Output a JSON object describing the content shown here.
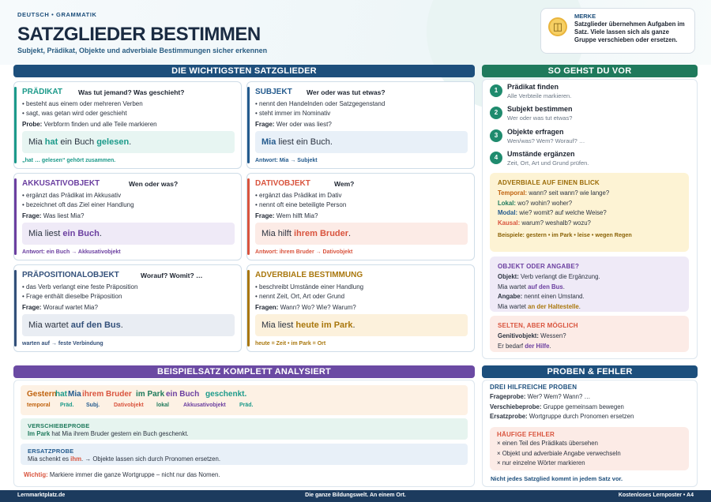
{
  "header": {
    "eyebrow": "DEUTSCH • GRAMMATIK",
    "title": "SATZGLIEDER BESTIMMEN",
    "subtitle": "Subjekt, Prädikat, Objekte und adverbiale Bestimmungen sicher erkennen"
  },
  "merke": {
    "title": "MERKE",
    "text": "Satzglieder übernehmen Aufgaben im Satz. Viele lassen sich als ganze Gruppe verschieben oder ersetzen."
  },
  "main_bar": "DIE WICHTIGSTEN SATZGLIEDER",
  "cards": {
    "praedikat": {
      "title": "PRÄDIKAT",
      "question": "Was tut jemand? Was geschieht?",
      "b1": "• besteht aus einem oder mehreren Verben",
      "b2": "• sagt, was getan wird oder geschieht",
      "probe_label": "Probe:",
      "probe_text": "Verbform finden und alle Teile markieren",
      "ex_pre": "Mia ",
      "ex_a": "hat",
      "ex_mid": " ein Buch ",
      "ex_b": "gelesen",
      "ex_post": ".",
      "answer": "„hat … gelesen“ gehört zusammen."
    },
    "subjekt": {
      "title": "SUBJEKT",
      "question": "Wer oder was tut etwas?",
      "b1": "• nennt den Handelnden oder Satzgegenstand",
      "b2": "• steht immer im Nominativ",
      "probe_label": "Frage:",
      "probe_text": "Wer oder was liest?",
      "ex_hl": "Mia",
      "ex_post": " liest ein Buch.",
      "answer": "Antwort: Mia → Subjekt"
    },
    "akkusativ": {
      "title": "AKKUSATIVOBJEKT",
      "question": "Wen oder was?",
      "b1": "• ergänzt das Prädikat im Akkusativ",
      "b2": "• bezeichnet oft das Ziel einer Handlung",
      "probe_label": "Frage:",
      "probe_text": "Was liest Mia?",
      "ex_pre": "Mia liest ",
      "ex_hl": "ein Buch",
      "ex_post": ".",
      "answer": "Antwort: ein Buch → Akkusativobjekt"
    },
    "dativ": {
      "title": "DATIVOBJEKT",
      "question": "Wem?",
      "b1": "• ergänzt das Prädikat im Dativ",
      "b2": "• nennt oft eine beteiligte Person",
      "probe_label": "Frage:",
      "probe_text": "Wem hilft Mia?",
      "ex_pre": "Mia hilft ",
      "ex_hl": "ihrem Bruder",
      "ex_post": ".",
      "answer": "Antwort: ihrem Bruder → Dativobjekt"
    },
    "praeposition": {
      "title": "PRÄPOSITIONALOBJEKT",
      "question": "Worauf? Womit? …",
      "b1": "• das Verb verlangt eine feste Präposition",
      "b2": "• Frage enthält dieselbe Präposition",
      "probe_label": "Frage:",
      "probe_text": "Worauf wartet Mia?",
      "ex_pre": "Mia wartet ",
      "ex_hl": "auf den Bus",
      "ex_post": ".",
      "answer": "warten auf → feste Verbindung"
    },
    "adverbial": {
      "title": "ADVERBIALE BESTIMMUNG",
      "question": "",
      "b1": "• beschreibt Umstände einer Handlung",
      "b2": "• nennt Zeit, Ort, Art oder Grund",
      "probe_label": "Fragen:",
      "probe_text": "Wann? Wo? Wie? Warum?",
      "ex_pre": "Mia liest ",
      "ex_hl": "heute im Park",
      "ex_post": ".",
      "answer": "heute = Zeit • im Park = Ort"
    }
  },
  "steps": {
    "bar": "SO GEHST DU VOR",
    "items": [
      {
        "num": "1",
        "title": "Prädikat finden",
        "sub": "Alle Verbteile markieren."
      },
      {
        "num": "2",
        "title": "Subjekt bestimmen",
        "sub": "Wer oder was tut etwas?"
      },
      {
        "num": "3",
        "title": "Objekte erfragen",
        "sub": "Wen/was? Wem? Worauf? …"
      },
      {
        "num": "4",
        "title": "Umstände ergänzen",
        "sub": "Zeit, Ort, Art und Grund prüfen."
      }
    ]
  },
  "adverbial_box": {
    "title": "ADVERBIALE AUF EINEN BLICK",
    "rows": [
      {
        "label": "Temporal:",
        "text": "wann? seit wann? wie lange?"
      },
      {
        "label": "Lokal:",
        "text": "wo? wohin? woher?"
      },
      {
        "label": "Modal:",
        "text": "wie? womit? auf welche Weise?"
      },
      {
        "label": "Kausal:",
        "text": "warum? weshalb? wozu?"
      }
    ],
    "examples": "Beispiele: gestern • im Park • leise • wegen Regen"
  },
  "objekt_box": {
    "title": "OBJEKT ODER ANGABE?",
    "l1_label": "Objekt:",
    "l1_text": "Verb verlangt die Ergänzung.",
    "l2_pre": "Mia wartet ",
    "l2_hl": "auf den Bus",
    "l2_post": ".",
    "l3_label": "Angabe:",
    "l3_text": "nennt einen Umstand.",
    "l4_pre": "Mia wartet ",
    "l4_hl": "an der Haltestelle",
    "l4_post": "."
  },
  "selten_box": {
    "title": "SELTEN, ABER MÖGLICH",
    "l1_label": "Genitivobjekt:",
    "l1_text": "Wessen?",
    "l2_pre": "Er bedarf ",
    "l2_hl": "der Hilfe",
    "l2_post": "."
  },
  "analyse": {
    "bar": "BEISPIELSATZ KOMPLETT ANALYSIERT",
    "words": [
      "Gestern",
      "hat",
      "Mia",
      "ihrem Bruder",
      "im Park",
      "ein Buch",
      "geschenkt."
    ],
    "tags": [
      "temporal",
      "Präd.",
      "Subj.",
      "Dativobjekt",
      "lokal",
      "Akkusativobjekt",
      "Präd."
    ],
    "verschiebe_title": "VERSCHIEBEPROBE",
    "verschiebe_hl": "Im Park",
    "verschiebe_text": " hat Mia ihrem Bruder gestern ein Buch geschenkt.",
    "ersatz_title": "ERSATZPROBE",
    "ersatz_pre": "Mia schenkt es ",
    "ersatz_hl": "ihm",
    "ersatz_post": ". → Objekte lassen sich durch Pronomen ersetzen.",
    "wichtig_label": "Wichtig:",
    "wichtig_text": " Markiere immer die ganze Wortgruppe – nicht nur das Nomen."
  },
  "proben": {
    "bar": "PROBEN & FEHLER",
    "sub_title": "DREI HILFREICHE PROBEN",
    "p1_label": "Frageprobe:",
    "p1_text": " Wer? Wem? Wann? …",
    "p2_label": "Verschiebeprobe:",
    "p2_text": " Gruppe gemeinsam bewegen",
    "p3_label": "Ersatzprobe:",
    "p3_text": " Wortgruppe durch Pronomen ersetzen",
    "fehler_title": "HÄUFIGE FEHLER",
    "fehler": [
      "× einen Teil des Prädikats übersehen",
      "× Objekt und adverbiale Angabe verwechseln",
      "× nur einzelne Wörter markieren"
    ],
    "note": "Nicht jedes Satzglied kommt in jedem Satz vor."
  },
  "footer": {
    "left": "Lernmarktplatz.de",
    "center": "Die ganze Bildungswelt. An einem Ort.",
    "right": "Kostenloses Lernposter • A4"
  },
  "colors": {
    "praedikat": "#1c9a8a",
    "subjekt": "#245b8e",
    "akkusativ": "#6b3fa0",
    "dativ": "#d9543e",
    "praeposition": "#33507a",
    "adverbial": "#a9770d",
    "green": "#1f8b6e",
    "purple_bar": "#6b4aa3",
    "navy_bar": "#1d4f7c"
  }
}
